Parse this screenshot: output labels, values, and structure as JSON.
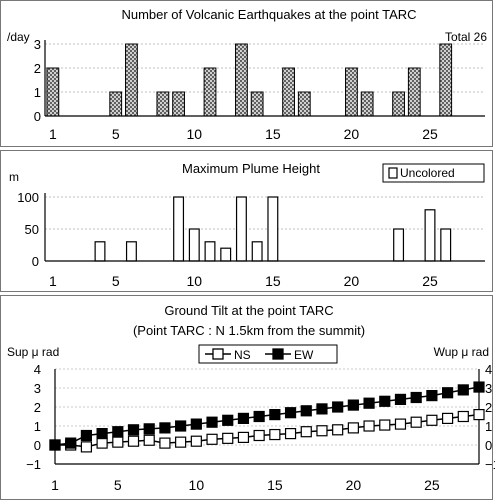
{
  "chart_data": [
    {
      "type": "bar",
      "title": "Number of Volcanic Earthquakes at the point TARC",
      "ylabel": "/day",
      "annotation": "Total 26",
      "x": [
        1,
        2,
        3,
        4,
        5,
        6,
        7,
        8,
        9,
        10,
        11,
        12,
        13,
        14,
        15,
        16,
        17,
        18,
        19,
        20,
        21,
        22,
        23,
        24,
        25,
        26,
        27,
        28
      ],
      "values": [
        2,
        0,
        0,
        0,
        1,
        3,
        0,
        1,
        1,
        0,
        2,
        0,
        3,
        1,
        0,
        2,
        1,
        0,
        0,
        2,
        1,
        0,
        1,
        2,
        0,
        3,
        0,
        0
      ],
      "x_ticks": [
        "1",
        "5",
        "10",
        "15",
        "20",
        "25"
      ],
      "y_ticks": [
        "0",
        "1",
        "2",
        "3"
      ],
      "ylim": [
        0,
        3
      ],
      "grid": true,
      "bar_fill": "hatched"
    },
    {
      "type": "bar",
      "title": "Maximum Plume Height",
      "ylabel": "m",
      "legend": [
        "Uncolored"
      ],
      "x": [
        1,
        2,
        3,
        4,
        5,
        6,
        7,
        8,
        9,
        10,
        11,
        12,
        13,
        14,
        15,
        16,
        17,
        18,
        19,
        20,
        21,
        22,
        23,
        24,
        25,
        26,
        27,
        28
      ],
      "values": [
        0,
        0,
        0,
        30,
        0,
        30,
        0,
        0,
        100,
        50,
        30,
        20,
        100,
        30,
        100,
        0,
        0,
        0,
        0,
        0,
        0,
        0,
        50,
        0,
        80,
        50,
        0,
        0
      ],
      "x_ticks": [
        "1",
        "5",
        "10",
        "15",
        "20",
        "25"
      ],
      "y_ticks": [
        "0",
        "50",
        "100"
      ],
      "ylim": [
        0,
        100
      ],
      "grid": true,
      "bar_fill": "white"
    },
    {
      "type": "line",
      "title": "Ground Tilt at the point TARC",
      "subtitle": "(Point TARC : N 1.5km from the summit)",
      "ylabel_left": "Sup μ rad",
      "ylabel_right": "Wup μ rad",
      "x": [
        1,
        2,
        3,
        4,
        5,
        6,
        7,
        8,
        9,
        10,
        11,
        12,
        13,
        14,
        15,
        16,
        17,
        18,
        19,
        20,
        21,
        22,
        23,
        24,
        25,
        26,
        27,
        28
      ],
      "series": [
        {
          "name": "NS",
          "marker": "open-square",
          "values": [
            0.0,
            0.0,
            -0.1,
            0.1,
            0.15,
            0.2,
            0.25,
            0.1,
            0.15,
            0.2,
            0.3,
            0.35,
            0.4,
            0.5,
            0.55,
            0.6,
            0.7,
            0.75,
            0.8,
            0.9,
            1.0,
            1.05,
            1.1,
            1.2,
            1.3,
            1.4,
            1.5,
            1.6
          ]
        },
        {
          "name": "EW",
          "marker": "filled-square",
          "values": [
            0.0,
            0.1,
            0.5,
            0.6,
            0.7,
            0.8,
            0.85,
            0.9,
            1.0,
            1.1,
            1.2,
            1.3,
            1.4,
            1.5,
            1.6,
            1.7,
            1.8,
            1.9,
            2.0,
            2.1,
            2.2,
            2.3,
            2.4,
            2.5,
            2.6,
            2.75,
            2.9,
            3.05
          ]
        }
      ],
      "x_ticks": [
        "1",
        "5",
        "10",
        "15",
        "20",
        "25"
      ],
      "y_ticks_left": [
        "−1",
        "0",
        "1",
        "2",
        "3",
        "4"
      ],
      "y_ticks_right": [
        "−1",
        "0",
        "1",
        "2",
        "3",
        "4"
      ],
      "ylim": [
        -1,
        4
      ],
      "grid": true,
      "legend_position": "top-center"
    }
  ]
}
